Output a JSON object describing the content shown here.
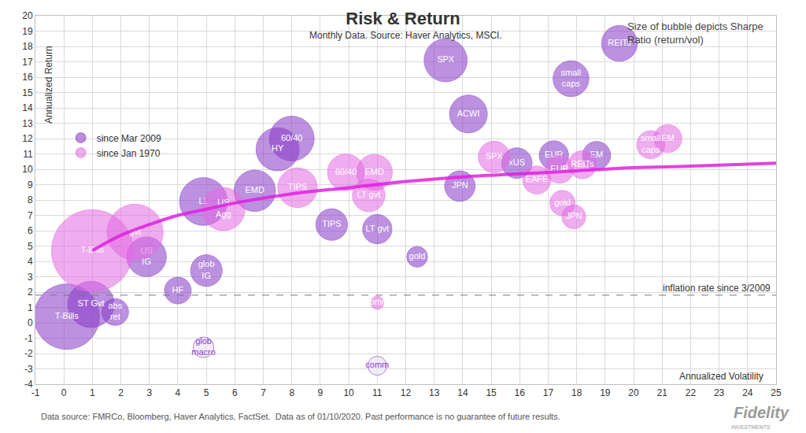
{
  "chart_data": {
    "type": "bubble",
    "title": "Risk & Return",
    "subtitle": "Monthly Data. Source: Haver Analytics, MSCI.",
    "x_label": "Annualized Volatility",
    "y_label": "Annualized Return",
    "note": "Size of bubble depicts Sharpe\nRatio (return/vol)",
    "source": "Data source: FMRCo, Bloomberg, Haver Analytics, FactSet.  Data as of 01/10/2020. Past performance is no guarantee of future results.",
    "logo": {
      "name": "Fidelity",
      "tagline": "INVESTMENTS"
    },
    "xlim": [
      -1,
      25
    ],
    "xticks": [
      -1,
      0,
      1,
      2,
      3,
      4,
      5,
      6,
      7,
      8,
      9,
      10,
      11,
      12,
      13,
      14,
      15,
      16,
      17,
      18,
      19,
      20,
      21,
      22,
      23,
      24,
      25
    ],
    "ylim": [
      -4,
      20
    ],
    "yticks": [
      -4,
      -3,
      -2,
      -1,
      0,
      1,
      2,
      3,
      4,
      5,
      6,
      7,
      8,
      9,
      10,
      11,
      12,
      13,
      14,
      15,
      16,
      17,
      18,
      19,
      20
    ],
    "grid": true,
    "legend": "upper left",
    "marker": "circle",
    "series": [
      {
        "name": "since Mar 2009",
        "color": "#8a3cc8",
        "labels": [
          "T-Bills",
          "ST Gvt",
          "abs\nret",
          "US\nIG",
          "HF",
          "glob\nIG",
          "glob\nmacro",
          "LL",
          "EMD",
          "HY",
          "60/40",
          "TIPS",
          "LT gvt",
          "comm",
          "gold",
          "SPX",
          "ACWI",
          "JPN",
          "xUS",
          "EUR",
          "EM",
          "small\ncaps",
          "REITs"
        ],
        "x": [
          0.1,
          0.95,
          1.8,
          2.9,
          4.0,
          5.0,
          4.9,
          4.9,
          6.7,
          7.5,
          8.0,
          9.4,
          11.0,
          11.0,
          12.4,
          13.4,
          14.2,
          13.9,
          15.9,
          17.2,
          18.7,
          17.8,
          19.5
        ],
        "values": [
          0.4,
          1.2,
          0.7,
          4.3,
          2.1,
          3.4,
          -1.6,
          7.9,
          8.6,
          11.3,
          12.0,
          6.4,
          6.1,
          -2.8,
          4.3,
          17.1,
          13.6,
          8.9,
          10.4,
          10.9,
          10.9,
          15.9,
          18.2
        ],
        "sharpe": [
          3.0,
          1.5,
          0.5,
          1.1,
          0.5,
          0.7,
          -0.3,
          1.6,
          1.2,
          1.3,
          1.4,
          0.7,
          0.6,
          -0.25,
          0.3,
          1.3,
          1.0,
          0.65,
          0.65,
          0.6,
          0.55,
          0.9,
          0.9
        ]
      },
      {
        "name": "since Jan 1970",
        "color": "#e36be3",
        "labels": [
          "T-Bills",
          "gvt",
          "US\nAgg",
          "TIPS",
          "60/40",
          "EMD",
          "LT gvt",
          "comm",
          "SPX",
          "EAFE",
          "EUR",
          "REITs",
          "gold",
          "JPN",
          "small\ncaps",
          "EM"
        ],
        "x": [
          1.0,
          2.5,
          5.6,
          8.2,
          9.9,
          10.9,
          10.7,
          11.0,
          15.1,
          16.6,
          17.4,
          18.2,
          17.5,
          17.9,
          20.6,
          21.2
        ],
        "values": [
          4.7,
          5.9,
          7.4,
          8.8,
          9.8,
          9.8,
          8.3,
          1.3,
          10.8,
          9.3,
          10.0,
          10.3,
          7.8,
          6.9,
          11.6,
          12.0
        ],
        "sharpe": [
          4.7,
          2.2,
          1.3,
          1.1,
          0.95,
          0.9,
          0.75,
          0.12,
          0.7,
          0.55,
          0.55,
          0.55,
          0.45,
          0.4,
          0.55,
          0.55
        ]
      }
    ],
    "trend_line": {
      "color": "#e020e0",
      "line_style": "solid",
      "x": [
        1,
        2,
        3,
        4,
        5,
        6,
        8,
        10,
        12,
        14,
        16,
        18,
        20,
        22,
        25
      ],
      "values": [
        4.7,
        5.7,
        6.4,
        7.0,
        7.4,
        7.8,
        8.4,
        8.8,
        9.2,
        9.5,
        9.7,
        9.9,
        10.1,
        10.2,
        10.4
      ]
    },
    "reference_line": {
      "value": 1.8,
      "label": "inflation rate since 3/2009",
      "color": "#777777",
      "line_style": "dashed"
    }
  }
}
